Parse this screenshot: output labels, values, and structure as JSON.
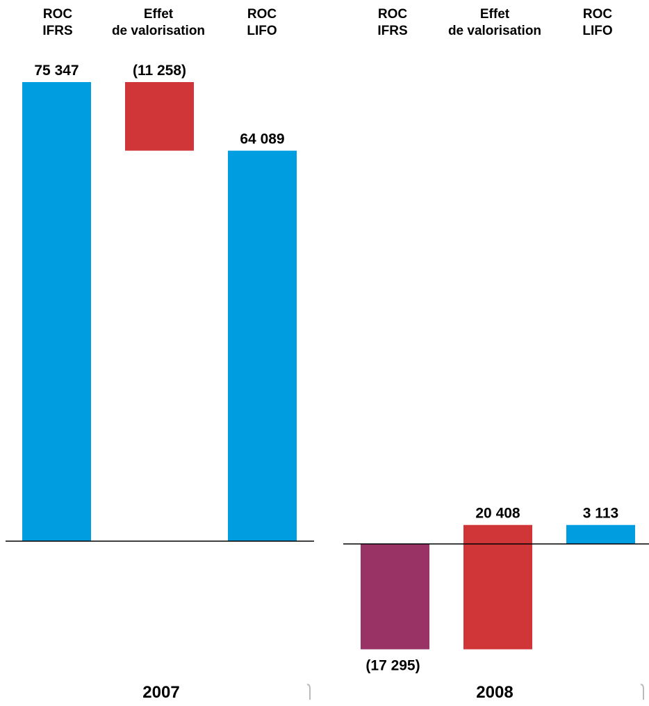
{
  "chart_data": [
    {
      "type": "bar",
      "style": "waterfall",
      "xlabel": "2007",
      "categories": [
        [
          "ROC",
          "IFRS"
        ],
        [
          "Effet",
          "de valorisation"
        ],
        [
          "ROC",
          "LIFO"
        ]
      ],
      "bars": [
        {
          "start": 0,
          "end": 75347,
          "label": "75 347",
          "color": "#009EE0"
        },
        {
          "start": 75347,
          "end": 64089,
          "label": "(11 258)",
          "color": "#D03537"
        },
        {
          "start": 0,
          "end": 64089,
          "label": "64 089",
          "color": "#009EE0"
        }
      ],
      "values": [
        75347,
        -11258,
        64089
      ]
    },
    {
      "type": "bar",
      "style": "waterfall",
      "xlabel": "2008",
      "categories": [
        [
          "ROC",
          "IFRS"
        ],
        [
          "Effet",
          "de valorisation"
        ],
        [
          "ROC",
          "LIFO"
        ]
      ],
      "bars": [
        {
          "start": 0,
          "end": -17295,
          "label": "(17 295)",
          "color": "#993366"
        },
        {
          "start": -17295,
          "end": 3113,
          "label": "20 408",
          "color": "#D03537"
        },
        {
          "start": 0,
          "end": 3113,
          "label": "3 113",
          "color": "#009EE0"
        }
      ],
      "values": [
        -17295,
        20408,
        3113
      ]
    }
  ]
}
